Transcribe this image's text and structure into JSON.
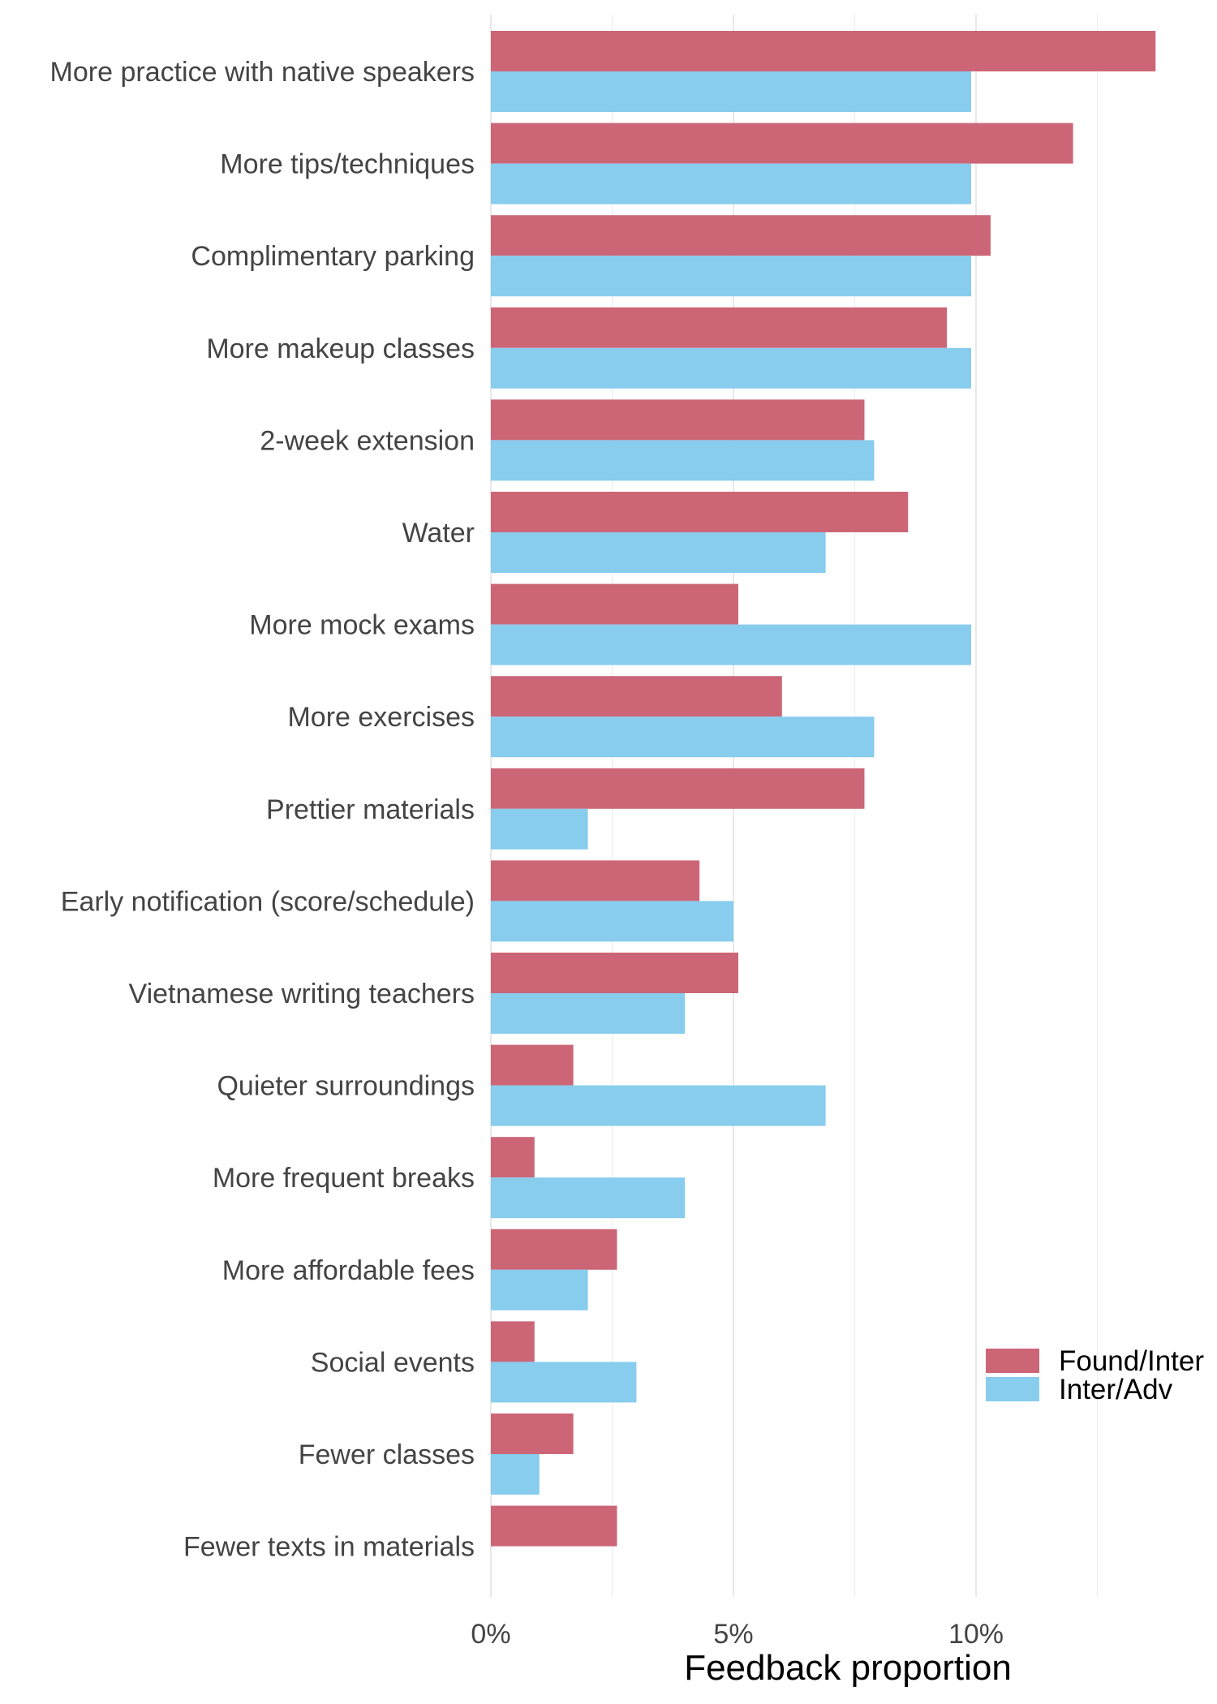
{
  "chart_data": {
    "type": "bar",
    "orientation": "horizontal",
    "categories": [
      "More practice with native speakers",
      "More tips/techniques",
      "Complimentary parking",
      "More makeup classes",
      "2-week extension",
      "Water",
      "More mock exams",
      "More exercises",
      "Prettier materials",
      "Early notification (score/schedule)",
      "Vietnamese writing teachers",
      "Quieter surroundings",
      "More frequent breaks",
      "More affordable fees",
      "Social events",
      "Fewer classes",
      "Fewer texts in materials"
    ],
    "series": [
      {
        "name": "Found/Inter",
        "color": "#CC6677",
        "values": [
          13.7,
          12.0,
          10.3,
          9.4,
          7.7,
          8.6,
          5.1,
          6.0,
          7.7,
          4.3,
          5.1,
          1.7,
          0.9,
          2.6,
          0.9,
          1.7,
          2.6
        ]
      },
      {
        "name": "Inter/Adv",
        "color": "#88CCEE",
        "values": [
          9.9,
          9.9,
          9.9,
          9.9,
          7.9,
          6.9,
          9.9,
          7.9,
          2.0,
          5.0,
          4.0,
          6.9,
          4.0,
          2.0,
          3.0,
          1.0,
          0
        ]
      }
    ],
    "xlabel": "Feedback proportion",
    "ylabel": "",
    "xlim": [
      0,
      14.5
    ],
    "xticks": [
      0,
      5,
      10
    ],
    "xtick_labels": [
      "0%",
      "5%",
      "10%"
    ],
    "grid": true,
    "legend_position": "bottom-right"
  }
}
